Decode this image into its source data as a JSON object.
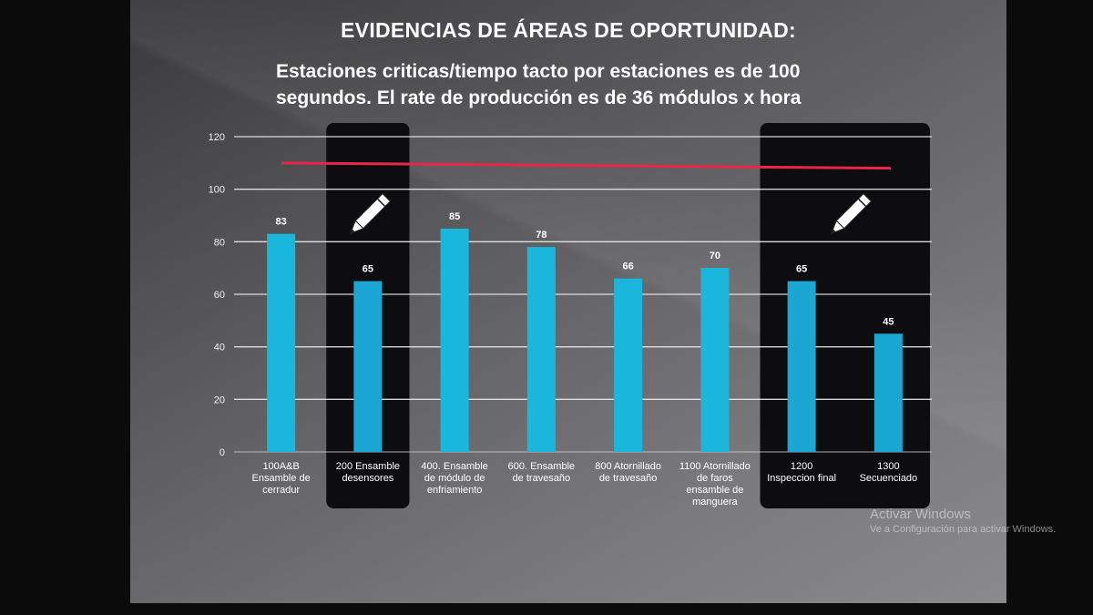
{
  "slide": {
    "title": "EVIDENCIAS DE ÁREAS DE OPORTUNIDAD:",
    "subtitle": "Estaciones criticas/tiempo tacto por estaciones es de 100 segundos. El rate de producción es de 36 módulos x hora"
  },
  "chart_data": {
    "type": "bar",
    "categories": [
      "100A&B Ensamble de cerradur",
      "200 Ensamble desensores",
      "400. Ensamble de módulo de enfriamiento",
      "600. Ensamble de travesaño",
      "800 Atornillado de travesaño",
      "1100 Atornillado de faros ensamble de manguera",
      "1200 Inspeccion final",
      "1300 Secuenciado"
    ],
    "category_lines": [
      [
        "100A&B",
        "Ensamble  de",
        "cerradur"
      ],
      [
        "200 Ensamble",
        "desensores"
      ],
      [
        "400. Ensamble",
        "de módulo de",
        "enfriamiento"
      ],
      [
        "600. Ensamble",
        "de travesaño"
      ],
      [
        "800 Atornillado",
        "de travesaño"
      ],
      [
        "1100 Atornillado",
        "de faros",
        "ensamble de",
        "manguera"
      ],
      [
        "1200",
        "Inspeccion final"
      ],
      [
        "1300",
        "Secuenciado"
      ]
    ],
    "values": [
      83,
      65,
      85,
      78,
      66,
      70,
      65,
      45
    ],
    "ylim": [
      0,
      120
    ],
    "yticks": [
      0,
      20,
      40,
      60,
      80,
      100,
      120
    ],
    "reference_line": {
      "y_start": 110,
      "y_end": 108,
      "color": "#e8264a"
    },
    "highlighted_categories": [
      1,
      6,
      7
    ],
    "highlight_boxes": [
      [
        1,
        1
      ],
      [
        6,
        7
      ]
    ],
    "bar_color": "#1ab6dc",
    "grid": true,
    "xlabel": "",
    "ylabel": ""
  },
  "watermark": {
    "title": "Activar Windows",
    "subtitle": "Ve a Configuración para activar Windows."
  }
}
